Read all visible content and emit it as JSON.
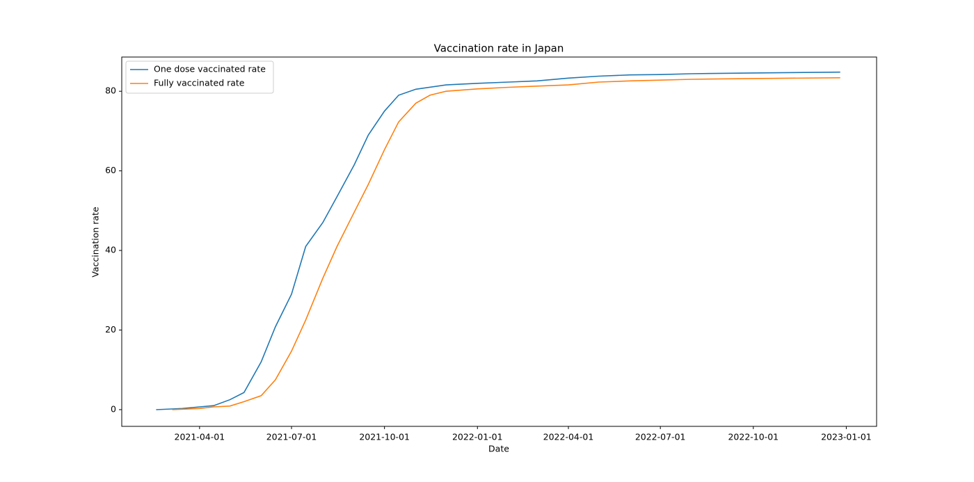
{
  "chart_data": {
    "type": "line",
    "title": "Vaccination rate in Japan",
    "xlabel": "Date",
    "ylabel": "Vaccination rate",
    "xlim": [
      "2021-01-14",
      "2023-01-31"
    ],
    "ylim": [
      -4.2,
      88.6
    ],
    "xticks": [
      "2021-04-01",
      "2021-07-01",
      "2021-10-01",
      "2022-01-01",
      "2022-04-01",
      "2022-07-01",
      "2022-10-01",
      "2023-01-01"
    ],
    "yticks": [
      0,
      20,
      40,
      60,
      80
    ],
    "legend": "upper left",
    "series": [
      {
        "name": "One dose vaccinated rate",
        "color": "#1f77b4",
        "x": [
          "2021-02-17",
          "2021-03-15",
          "2021-04-01",
          "2021-04-15",
          "2021-05-01",
          "2021-05-15",
          "2021-06-01",
          "2021-06-15",
          "2021-07-01",
          "2021-07-15",
          "2021-08-01",
          "2021-08-15",
          "2021-09-01",
          "2021-09-15",
          "2021-10-01",
          "2021-10-15",
          "2021-11-01",
          "2021-12-01",
          "2022-01-01",
          "2022-02-01",
          "2022-03-01",
          "2022-04-01",
          "2022-05-01",
          "2022-06-01",
          "2022-07-01",
          "2022-08-01",
          "2022-10-01",
          "2022-12-26"
        ],
        "values": [
          0,
          0.3,
          0.7,
          1.0,
          2.5,
          4.3,
          12,
          20.8,
          29,
          41,
          47,
          53.5,
          61.5,
          69,
          75,
          79,
          80.5,
          81.6,
          82.0,
          82.3,
          82.6,
          83.3,
          83.8,
          84.1,
          84.2,
          84.4,
          84.6,
          84.8
        ]
      },
      {
        "name": "Fully vaccinated rate",
        "color": "#ff7f0e",
        "x": [
          "2021-03-05",
          "2021-04-01",
          "2021-04-15",
          "2021-05-01",
          "2021-05-15",
          "2021-06-01",
          "2021-06-15",
          "2021-07-01",
          "2021-07-15",
          "2021-08-01",
          "2021-08-15",
          "2021-09-01",
          "2021-09-15",
          "2021-10-01",
          "2021-10-15",
          "2021-11-01",
          "2021-11-15",
          "2021-12-01",
          "2022-01-01",
          "2022-02-01",
          "2022-03-01",
          "2022-04-01",
          "2022-05-01",
          "2022-06-01",
          "2022-07-01",
          "2022-08-01",
          "2022-10-01",
          "2022-12-26"
        ],
        "values": [
          0,
          0.3,
          0.7,
          0.9,
          2.0,
          3.5,
          7.5,
          14.7,
          22.5,
          33,
          41,
          49.6,
          56.6,
          65.3,
          72.3,
          77,
          79,
          80,
          80.6,
          81.0,
          81.3,
          81.6,
          82.3,
          82.6,
          82.8,
          83.0,
          83.2,
          83.4
        ]
      }
    ]
  }
}
